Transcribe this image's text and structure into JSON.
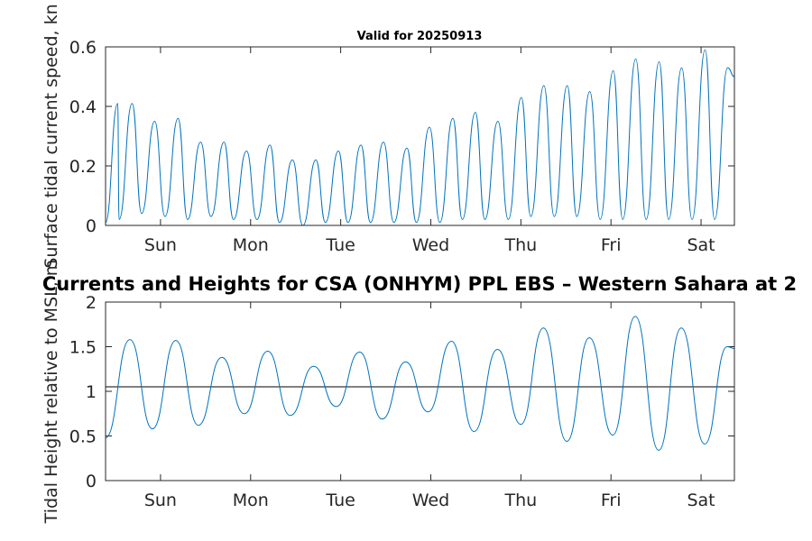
{
  "figure": {
    "top_title": "Valid for 20250913",
    "main_title": "Currents and Heights for CSA (ONHYM) PPL EBS  – Western Sahara at 2",
    "line_color": "#0072BD",
    "axis_color": "#262626",
    "reference_line_color": "#000000"
  },
  "chart_data": [
    {
      "type": "line",
      "title": "Valid for 20250913",
      "xlabel": "",
      "ylabel": "Surface tidal current speed, kn",
      "x_ticks": [
        "Sun",
        "Mon",
        "Tue",
        "Wed",
        "Thu",
        "Fri",
        "Sat"
      ],
      "x_tick_days": [
        1,
        2,
        3,
        4,
        5,
        6,
        7
      ],
      "xlim": [
        0.39,
        7.37
      ],
      "ylim": [
        0,
        0.6
      ],
      "y_ticks": [
        0,
        0.2,
        0.4,
        0.6
      ],
      "y_tick_labels": [
        "0",
        "0.2",
        "0.4",
        "0.6"
      ],
      "grid": false,
      "series": [
        {
          "x": [
            0.39,
            0.525,
            0.54,
            0.685,
            0.79,
            0.935,
            1.05,
            1.195,
            1.3,
            1.445,
            1.56,
            1.705,
            1.81,
            1.955,
            2.07,
            2.215,
            2.32,
            2.465,
            2.58,
            2.725,
            2.83,
            2.975,
            3.08,
            3.225,
            3.33,
            3.475,
            3.59,
            3.735,
            3.84,
            3.985,
            4.1,
            4.245,
            4.35,
            4.495,
            4.6,
            4.745,
            4.86,
            5.005,
            5.11,
            5.255,
            5.37,
            5.515,
            5.62,
            5.765,
            5.88,
            6.025,
            6.13,
            6.275,
            6.39,
            6.535,
            6.64,
            6.785,
            6.9,
            7.045,
            7.15,
            7.295,
            7.37
          ],
          "y": [
            0.01,
            0.41,
            0.02,
            0.41,
            0.04,
            0.35,
            0.03,
            0.36,
            0.02,
            0.28,
            0.03,
            0.28,
            0.02,
            0.25,
            0.02,
            0.27,
            0.01,
            0.22,
            0.0,
            0.22,
            0.01,
            0.25,
            0.01,
            0.27,
            0.01,
            0.28,
            0.01,
            0.26,
            0.01,
            0.33,
            0.01,
            0.36,
            0.02,
            0.38,
            0.02,
            0.35,
            0.02,
            0.43,
            0.03,
            0.47,
            0.03,
            0.47,
            0.03,
            0.45,
            0.02,
            0.52,
            0.02,
            0.56,
            0.02,
            0.55,
            0.02,
            0.53,
            0.02,
            0.59,
            0.02,
            0.53,
            0.5
          ]
        }
      ]
    },
    {
      "type": "line",
      "title": "Currents and Heights for CSA (ONHYM) PPL EBS  – Western Sahara at 2",
      "xlabel": "",
      "ylabel": "Tidal Height relative to MSL, m",
      "x_ticks": [
        "Sun",
        "Mon",
        "Tue",
        "Wed",
        "Thu",
        "Fri",
        "Sat"
      ],
      "x_tick_days": [
        1,
        2,
        3,
        4,
        5,
        6,
        7
      ],
      "xlim": [
        0.39,
        7.37
      ],
      "ylim": [
        0,
        2
      ],
      "y_ticks": [
        0,
        0.5,
        1,
        1.5,
        2
      ],
      "y_tick_labels": [
        "0",
        "0.5",
        "1",
        "1.5",
        "2"
      ],
      "reference_line": 1.05,
      "grid": false,
      "series": [
        {
          "x": [
            0.39,
            0.66,
            0.91,
            1.17,
            1.42,
            1.68,
            1.93,
            2.19,
            2.44,
            2.7,
            2.95,
            3.21,
            3.46,
            3.72,
            3.97,
            4.23,
            4.48,
            4.74,
            5.0,
            5.25,
            5.51,
            5.76,
            6.02,
            6.27,
            6.53,
            6.78,
            7.04,
            7.29,
            7.37
          ],
          "y": [
            0.48,
            1.58,
            0.58,
            1.57,
            0.62,
            1.38,
            0.75,
            1.45,
            0.73,
            1.28,
            0.83,
            1.44,
            0.69,
            1.33,
            0.77,
            1.56,
            0.55,
            1.47,
            0.63,
            1.71,
            0.44,
            1.6,
            0.51,
            1.84,
            0.34,
            1.71,
            0.41,
            1.5,
            1.48
          ]
        }
      ]
    }
  ]
}
